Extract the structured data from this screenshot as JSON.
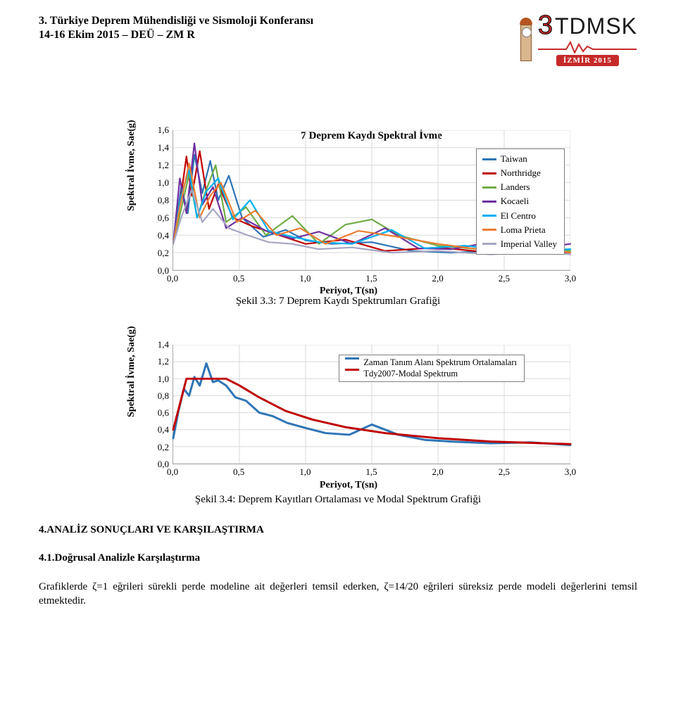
{
  "header": {
    "line1": "3. Türkiye Deprem Mühendisliği ve Sismoloji Konferansı",
    "line2": "14-16 Ekim 2015 – DEÜ – ZM R",
    "logo_text_3": "3",
    "logo_text_tdmsk": "TDMSK",
    "badge": "İZMİR  2015"
  },
  "chart1": {
    "type": "line",
    "title": "7 Deprem Kaydı Spektral İvme",
    "ylabel": "Spektral İvme, Sae(g)",
    "xlabel": "Periyot, T(sn)",
    "caption": "Şekil 3.3: 7 Deprem Kaydı Spektrumları Grafiği",
    "xlim": [
      0.0,
      3.0
    ],
    "ylim": [
      0.0,
      1.6
    ],
    "xticks": [
      "0,0",
      "0,5",
      "1,0",
      "1,5",
      "2,0",
      "2,5",
      "3,0"
    ],
    "yticks": [
      "0,0",
      "0,2",
      "0,4",
      "0,6",
      "0,8",
      "1,0",
      "1,2",
      "1,4",
      "1,6"
    ],
    "grid_color": "#d9d9d9",
    "axis_color": "#a6a6a6",
    "background_color": "#ffffff",
    "legend": [
      {
        "label": "Taiwan",
        "color": "#2e75b6"
      },
      {
        "label": "Northridge",
        "color": "#c00000"
      },
      {
        "label": "Landers",
        "color": "#70ad47"
      },
      {
        "label": "Kocaeli",
        "color": "#7030a0"
      },
      {
        "label": "El Centro",
        "color": "#00b0f0"
      },
      {
        "label": "Loma Prieta",
        "color": "#ed7d31"
      },
      {
        "label": "Imperial Valley",
        "color": "#a5a5c2"
      }
    ],
    "series": {
      "Taiwan": [
        [
          0,
          0.3
        ],
        [
          0.06,
          0.95
        ],
        [
          0.11,
          0.65
        ],
        [
          0.16,
          1.32
        ],
        [
          0.22,
          0.88
        ],
        [
          0.28,
          1.25
        ],
        [
          0.34,
          0.8
        ],
        [
          0.42,
          1.08
        ],
        [
          0.52,
          0.6
        ],
        [
          0.68,
          0.38
        ],
        [
          0.85,
          0.46
        ],
        [
          1.0,
          0.34
        ],
        [
          1.2,
          0.3
        ],
        [
          1.5,
          0.32
        ],
        [
          1.8,
          0.22
        ],
        [
          2.1,
          0.2
        ],
        [
          2.4,
          0.22
        ],
        [
          2.7,
          0.26
        ],
        [
          3.0,
          0.22
        ]
      ],
      "Northridge": [
        [
          0,
          0.3
        ],
        [
          0.05,
          0.75
        ],
        [
          0.1,
          1.3
        ],
        [
          0.14,
          0.85
        ],
        [
          0.2,
          1.36
        ],
        [
          0.27,
          0.7
        ],
        [
          0.34,
          0.98
        ],
        [
          0.45,
          0.6
        ],
        [
          0.6,
          0.5
        ],
        [
          0.8,
          0.4
        ],
        [
          1.0,
          0.3
        ],
        [
          1.3,
          0.35
        ],
        [
          1.6,
          0.22
        ],
        [
          2.0,
          0.26
        ],
        [
          2.4,
          0.2
        ],
        [
          2.7,
          0.24
        ],
        [
          3.0,
          0.2
        ]
      ],
      "Landers": [
        [
          0,
          0.3
        ],
        [
          0.06,
          0.7
        ],
        [
          0.12,
          1.1
        ],
        [
          0.18,
          0.6
        ],
        [
          0.24,
          0.88
        ],
        [
          0.32,
          1.2
        ],
        [
          0.4,
          0.55
        ],
        [
          0.55,
          0.72
        ],
        [
          0.7,
          0.4
        ],
        [
          0.9,
          0.62
        ],
        [
          1.1,
          0.3
        ],
        [
          1.3,
          0.52
        ],
        [
          1.5,
          0.58
        ],
        [
          1.7,
          0.4
        ],
        [
          2.0,
          0.28
        ],
        [
          2.3,
          0.24
        ],
        [
          2.7,
          0.22
        ],
        [
          3.0,
          0.22
        ]
      ],
      "Kocaeli": [
        [
          0,
          0.3
        ],
        [
          0.05,
          1.05
        ],
        [
          0.1,
          0.65
        ],
        [
          0.16,
          1.45
        ],
        [
          0.22,
          0.75
        ],
        [
          0.3,
          0.95
        ],
        [
          0.4,
          0.48
        ],
        [
          0.52,
          0.6
        ],
        [
          0.7,
          0.45
        ],
        [
          0.9,
          0.36
        ],
        [
          1.1,
          0.44
        ],
        [
          1.35,
          0.3
        ],
        [
          1.6,
          0.48
        ],
        [
          1.85,
          0.25
        ],
        [
          2.1,
          0.24
        ],
        [
          2.4,
          0.32
        ],
        [
          2.7,
          0.24
        ],
        [
          3.0,
          0.3
        ]
      ],
      "El Centro": [
        [
          0,
          0.3
        ],
        [
          0.06,
          0.85
        ],
        [
          0.12,
          1.15
        ],
        [
          0.18,
          0.6
        ],
        [
          0.25,
          0.9
        ],
        [
          0.34,
          1.05
        ],
        [
          0.45,
          0.58
        ],
        [
          0.58,
          0.8
        ],
        [
          0.72,
          0.45
        ],
        [
          0.9,
          0.38
        ],
        [
          1.1,
          0.32
        ],
        [
          1.35,
          0.3
        ],
        [
          1.65,
          0.46
        ],
        [
          1.9,
          0.25
        ],
        [
          2.2,
          0.28
        ],
        [
          2.6,
          0.22
        ],
        [
          3.0,
          0.24
        ]
      ],
      "Loma Prieta": [
        [
          0,
          0.3
        ],
        [
          0.05,
          0.72
        ],
        [
          0.12,
          1.22
        ],
        [
          0.2,
          0.6
        ],
        [
          0.28,
          0.85
        ],
        [
          0.36,
          1.0
        ],
        [
          0.48,
          0.55
        ],
        [
          0.62,
          0.68
        ],
        [
          0.78,
          0.4
        ],
        [
          0.96,
          0.48
        ],
        [
          1.15,
          0.3
        ],
        [
          1.4,
          0.45
        ],
        [
          1.7,
          0.38
        ],
        [
          2.0,
          0.3
        ],
        [
          2.4,
          0.22
        ],
        [
          2.7,
          0.28
        ],
        [
          3.0,
          0.2
        ]
      ],
      "Imperial Valley": [
        [
          0,
          0.3
        ],
        [
          0.06,
          0.6
        ],
        [
          0.14,
          0.92
        ],
        [
          0.22,
          0.55
        ],
        [
          0.3,
          0.7
        ],
        [
          0.42,
          0.48
        ],
        [
          0.56,
          0.4
        ],
        [
          0.72,
          0.32
        ],
        [
          0.9,
          0.3
        ],
        [
          1.1,
          0.24
        ],
        [
          1.35,
          0.26
        ],
        [
          1.65,
          0.2
        ],
        [
          2.0,
          0.22
        ],
        [
          2.4,
          0.18
        ],
        [
          2.8,
          0.22
        ],
        [
          3.0,
          0.18
        ]
      ]
    }
  },
  "chart2": {
    "type": "line",
    "ylabel": "Spektral İvme, Sae(g)",
    "xlabel": "Periyot, T(sn)",
    "caption": "Şekil 3.4: Deprem Kayıtları Ortalaması ve Modal Spektrum Grafiği",
    "xlim": [
      0.0,
      3.0
    ],
    "ylim": [
      0.0,
      1.4
    ],
    "xticks": [
      "0,0",
      "0,5",
      "1,0",
      "1,5",
      "2,0",
      "2,5",
      "3,0"
    ],
    "yticks": [
      "0,0",
      "0,2",
      "0,4",
      "0,6",
      "0,8",
      "1,0",
      "1,2",
      "1,4"
    ],
    "grid_color": "#d9d9d9",
    "axis_color": "#a6a6a6",
    "background_color": "#ffffff",
    "legend": [
      {
        "label": "Zaman Tanım Alanı Spektrum Ortalamaları",
        "color": "#2e75b6"
      },
      {
        "label": "Tdy2007-Modal Spektrum",
        "color": "#c00000"
      }
    ],
    "series": {
      "ortalama": [
        [
          0,
          0.3
        ],
        [
          0.04,
          0.62
        ],
        [
          0.08,
          0.88
        ],
        [
          0.12,
          0.8
        ],
        [
          0.16,
          1.02
        ],
        [
          0.2,
          0.92
        ],
        [
          0.25,
          1.18
        ],
        [
          0.3,
          0.96
        ],
        [
          0.34,
          0.98
        ],
        [
          0.4,
          0.92
        ],
        [
          0.47,
          0.78
        ],
        [
          0.55,
          0.74
        ],
        [
          0.65,
          0.6
        ],
        [
          0.75,
          0.56
        ],
        [
          0.86,
          0.48
        ],
        [
          1.0,
          0.42
        ],
        [
          1.15,
          0.36
        ],
        [
          1.33,
          0.34
        ],
        [
          1.5,
          0.46
        ],
        [
          1.7,
          0.34
        ],
        [
          1.9,
          0.28
        ],
        [
          2.1,
          0.26
        ],
        [
          2.4,
          0.24
        ],
        [
          2.7,
          0.25
        ],
        [
          3.0,
          0.22
        ]
      ],
      "tdy2007": [
        [
          0,
          0.4
        ],
        [
          0.1,
          1.0
        ],
        [
          0.4,
          1.0
        ],
        [
          0.5,
          0.92
        ],
        [
          0.65,
          0.78
        ],
        [
          0.85,
          0.62
        ],
        [
          1.05,
          0.52
        ],
        [
          1.3,
          0.43
        ],
        [
          1.6,
          0.36
        ],
        [
          2.0,
          0.3
        ],
        [
          2.4,
          0.26
        ],
        [
          2.8,
          0.24
        ],
        [
          3.0,
          0.23
        ]
      ]
    }
  },
  "text": {
    "heading4": "4.ANALİZ SONUÇLARI VE KARŞILAŞTIRMA",
    "heading41": "4.1.Doğrusal Analizle Karşılaştırma",
    "paragraph": "Grafiklerde ζ=1 eğrileri sürekli perde modeline ait değerleri temsil ederken, ζ=14/20 eğrileri süreksiz perde modeli değerlerini temsil etmektedir."
  }
}
